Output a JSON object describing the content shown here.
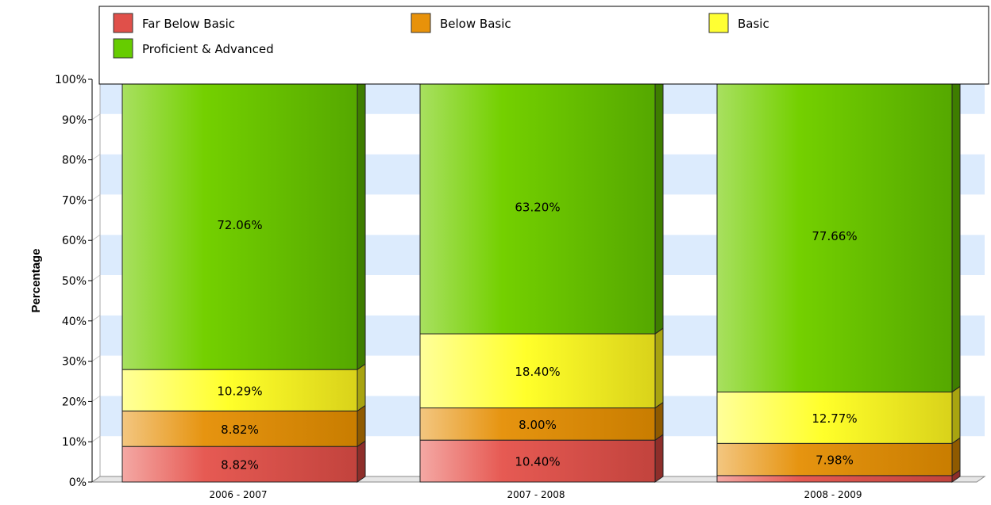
{
  "chart_data": {
    "type": "bar",
    "stacked": true,
    "three_d": true,
    "ylabel": "Percentage",
    "xlabel": "",
    "ylim": [
      0,
      100
    ],
    "y_ticks": [
      "0%",
      "10%",
      "20%",
      "30%",
      "40%",
      "50%",
      "60%",
      "70%",
      "80%",
      "90%",
      "100%"
    ],
    "grid": "alternating horizontal bands",
    "legend_position": "top",
    "categories": [
      "2006-2007",
      "2007-2008",
      "2008-2009"
    ],
    "series": [
      {
        "name": "Far Below Basic",
        "color": "#e0504a",
        "values": [
          8.82,
          10.4,
          1.6
        ],
        "labels": [
          "8.82%",
          "10.40%",
          ""
        ]
      },
      {
        "name": "Below Basic",
        "color": "#e8920a",
        "values": [
          8.82,
          8.0,
          7.98
        ],
        "labels": [
          "8.82%",
          "8.00%",
          "7.98%"
        ]
      },
      {
        "name": "Basic",
        "color": "#ffff33",
        "values": [
          10.29,
          18.4,
          12.77
        ],
        "labels": [
          "10.29%",
          "18.40%",
          "12.77%"
        ]
      },
      {
        "name": "Proficient & Advanced",
        "color": "#66cc00",
        "values": [
          72.06,
          63.2,
          77.66
        ],
        "labels": [
          "72.06%",
          "63.20%",
          "77.66%"
        ]
      }
    ]
  }
}
